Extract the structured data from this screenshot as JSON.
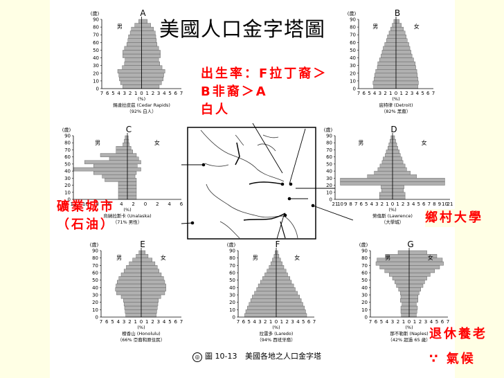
{
  "title": "美國人口金字塔圖",
  "notes": {
    "birth_rate": [
      "出生率：",
      "F",
      "拉丁裔＞",
      "B",
      "非裔＞",
      "A",
      "白人"
    ],
    "mining": [
      "礦業城市",
      "（石油）"
    ],
    "rural_univ": "鄉村大學",
    "retire": [
      "退休養老",
      "∵ 氣候"
    ]
  },
  "caption": {
    "figure": "圖 10-13",
    "text": "美國各地之人口金字塔"
  },
  "common": {
    "yunit": "(歲)",
    "male": "男",
    "female": "女",
    "xunit": "(%)",
    "ages": [
      "0",
      "10",
      "20",
      "30",
      "40",
      "50",
      "60",
      "70",
      "80",
      "90"
    ]
  },
  "colors": {
    "bar": "#B0B0B0",
    "note": "#FF0000"
  },
  "chart_data": [
    {
      "id": "A",
      "type": "bar",
      "orientation": "horizontal",
      "title": "A",
      "place": "錫達拉皮茲 (Cedar Rapids)",
      "subtitle": "（92% 白人）",
      "xticks": [
        "7",
        "6",
        "5",
        "4",
        "3",
        "2",
        "1",
        "0",
        "1",
        "2",
        "3",
        "4",
        "5",
        "6",
        "7"
      ],
      "xmax": 7,
      "male": [
        3.3,
        3.7,
        3.9,
        4.0,
        4.2,
        3.4,
        3.0,
        2.9,
        3.3,
        3.3,
        3.0,
        2.6,
        2.4,
        2.3,
        2.0,
        1.8,
        1.2,
        0.5
      ],
      "female": [
        3.1,
        3.5,
        3.8,
        3.9,
        4.1,
        3.6,
        3.2,
        3.0,
        3.3,
        3.3,
        3.0,
        2.7,
        2.6,
        2.5,
        2.4,
        2.1,
        1.6,
        1.0
      ]
    },
    {
      "id": "B",
      "type": "bar",
      "orientation": "horizontal",
      "title": "B",
      "place": "底特律 (Detroit)",
      "subtitle": "（82% 黑裔）",
      "xticks": [
        "7",
        "6",
        "5",
        "4",
        "3",
        "2",
        "1",
        "0",
        "1",
        "2",
        "3",
        "4",
        "5",
        "6",
        "7"
      ],
      "xmax": 7,
      "male": [
        4.2,
        4.3,
        4.1,
        4.0,
        3.8,
        3.5,
        3.4,
        3.1,
        2.8,
        2.6,
        2.4,
        2.1,
        1.8,
        1.6,
        1.3,
        1.0,
        0.7,
        0.4
      ],
      "female": [
        4.1,
        4.2,
        4.1,
        4.0,
        3.9,
        3.7,
        3.6,
        3.3,
        3.0,
        2.8,
        2.6,
        2.4,
        2.1,
        1.9,
        1.7,
        1.4,
        1.0,
        0.6
      ]
    },
    {
      "id": "C",
      "type": "bar",
      "orientation": "horizontal",
      "title": "C",
      "place": "烏納拉斯卡 (Unalaska)",
      "subtitle": "（71% 男性）",
      "xticks": [
        "12",
        "10",
        "8",
        "6",
        "4",
        "2",
        "0",
        "2",
        "4",
        "6"
      ],
      "xmax": 12,
      "male": [
        2.0,
        2.0,
        2.0,
        2.0,
        2.0,
        5.0,
        5.6,
        7.5,
        12.0,
        7.5,
        9.5,
        4.0,
        6.0,
        2.5,
        2.5,
        1.0,
        0.7,
        0.5
      ],
      "female": [
        2.0,
        2.0,
        2.0,
        2.0,
        2.0,
        2.0,
        1.7,
        2.0,
        3.0,
        2.2,
        3.0,
        2.5,
        2.0,
        1.2,
        0.8,
        0.4,
        0.3,
        0.2
      ]
    },
    {
      "id": "D",
      "type": "bar",
      "orientation": "horizontal",
      "title": "D",
      "place": "勞倫斯 (Lawrence)",
      "subtitle": "（大學城）",
      "xticks": [
        "21",
        "10",
        "9",
        "8",
        "7",
        "6",
        "5",
        "4",
        "3",
        "2",
        "1",
        "0",
        "1",
        "2",
        "3",
        "4",
        "5",
        "6",
        "7",
        "8",
        "9",
        "10",
        "21"
      ],
      "xmax": 11,
      "male": [
        2.5,
        2.5,
        2.1,
        2.2,
        10.0,
        10.0,
        4.8,
        3.5,
        2.8,
        2.4,
        2.0,
        1.8,
        1.4,
        1.2,
        0.9,
        0.7,
        0.5,
        0.3
      ],
      "female": [
        2.4,
        2.4,
        2.1,
        2.2,
        10.0,
        10.0,
        4.6,
        3.4,
        2.7,
        2.4,
        2.0,
        1.8,
        1.5,
        1.3,
        1.0,
        0.8,
        0.6,
        0.4
      ]
    },
    {
      "id": "E",
      "type": "bar",
      "orientation": "horizontal",
      "title": "E",
      "place": "檀香山 (Honolulu)",
      "subtitle": "（66% 亞裔和原住民）",
      "xticks": [
        "7",
        "6",
        "5",
        "4",
        "3",
        "2",
        "1",
        "0",
        "1",
        "2",
        "3",
        "4",
        "5",
        "6",
        "7"
      ],
      "xmax": 7,
      "male": [
        2.7,
        2.8,
        2.9,
        3.0,
        3.1,
        3.5,
        4.3,
        4.5,
        4.4,
        4.2,
        3.9,
        3.5,
        3.0,
        2.6,
        2.1,
        1.5,
        0.9,
        0.4
      ],
      "female": [
        2.6,
        2.7,
        2.8,
        2.9,
        3.0,
        3.4,
        4.1,
        4.3,
        4.3,
        4.1,
        3.9,
        3.5,
        3.1,
        2.8,
        2.4,
        1.9,
        1.2,
        0.7
      ]
    },
    {
      "id": "F",
      "type": "bar",
      "orientation": "horizontal",
      "title": "F",
      "place": "拉雷多 (Laredo)",
      "subtitle": "（94% 西班牙裔）",
      "xticks": [
        "7",
        "6",
        "5",
        "4",
        "3",
        "2",
        "1",
        "0",
        "1",
        "2",
        "3",
        "4",
        "5",
        "6",
        "7"
      ],
      "xmax": 7,
      "male": [
        5.8,
        5.6,
        5.3,
        5.0,
        4.7,
        4.4,
        4.0,
        3.6,
        3.3,
        2.9,
        2.5,
        2.1,
        1.7,
        1.3,
        1.0,
        0.7,
        0.4,
        0.2
      ],
      "female": [
        5.6,
        5.4,
        5.2,
        4.9,
        4.6,
        4.3,
        3.9,
        3.5,
        3.2,
        2.8,
        2.5,
        2.1,
        1.8,
        1.4,
        1.1,
        0.8,
        0.5,
        0.3
      ]
    },
    {
      "id": "G",
      "type": "bar",
      "orientation": "horizontal",
      "title": "G",
      "place": "那不勒斯 (Naples)",
      "subtitle": "（42% 超過 65 歲）",
      "xticks": [
        "7",
        "6",
        "5",
        "4",
        "3",
        "2",
        "1",
        "0",
        "1",
        "2",
        "3",
        "4",
        "5",
        "6",
        "7"
      ],
      "xmax": 7,
      "male": [
        1.4,
        1.5,
        1.5,
        1.3,
        1.6,
        1.5,
        1.6,
        1.9,
        2.3,
        2.6,
        3.0,
        3.6,
        4.4,
        5.3,
        6.0,
        5.8,
        4.3,
        2.0
      ],
      "female": [
        1.3,
        1.4,
        1.5,
        1.3,
        1.6,
        1.6,
        1.8,
        2.1,
        2.5,
        2.8,
        3.2,
        3.8,
        4.6,
        5.5,
        6.2,
        6.0,
        5.0,
        3.2
      ]
    }
  ]
}
